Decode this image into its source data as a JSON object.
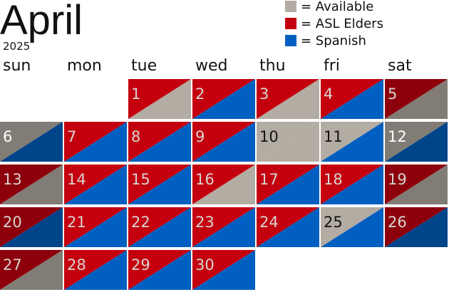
{
  "header": {
    "title": "April",
    "year": "2025"
  },
  "legend": [
    {
      "label": "= Available",
      "color": "#b3aca2"
    },
    {
      "label": "= ASL Elders",
      "color": "#c4000f"
    },
    {
      "label": "= Spanish",
      "color": "#005fc0"
    }
  ],
  "weekdays": [
    "sun",
    "mon",
    "tue",
    "wed",
    "thu",
    "fri",
    "sat"
  ],
  "weeks": [
    [
      null,
      null,
      {
        "label": "1",
        "top": "#c4000f",
        "bottom": "#b3aca2"
      },
      {
        "label": "2",
        "top": "#c4000f",
        "bottom": "#005fc0"
      },
      {
        "label": "3",
        "top": "#c4000f",
        "bottom": "#b3aca2"
      },
      {
        "label": "4",
        "top": "#c4000f",
        "bottom": "#005fc0"
      },
      {
        "label": "5",
        "top": "#c4000f",
        "bottom": "#b3aca2"
      }
    ],
    [
      {
        "label": "6",
        "top": "#b3aca2",
        "bottom": "#005fc0"
      },
      {
        "label": "7",
        "top": "#c4000f",
        "bottom": "#005fc0"
      },
      {
        "label": "8",
        "top": "#c4000f",
        "bottom": "#005fc0"
      },
      {
        "label": "9",
        "top": "#c4000f",
        "bottom": "#005fc0"
      },
      {
        "label": "10",
        "top": "#b3aca2",
        "bottom": "#b3aca2"
      },
      {
        "label": "11",
        "top": "#b3aca2",
        "bottom": "#005fc0"
      },
      {
        "label": "12",
        "top": "#b3aca2",
        "bottom": "#005fc0"
      }
    ],
    [
      {
        "label": "13",
        "top": "#c4000f",
        "bottom": "#b3aca2"
      },
      {
        "label": "14",
        "top": "#c4000f",
        "bottom": "#005fc0"
      },
      {
        "label": "15",
        "top": "#c4000f",
        "bottom": "#005fc0"
      },
      {
        "label": "16",
        "top": "#c4000f",
        "bottom": "#b3aca2"
      },
      {
        "label": "17",
        "top": "#c4000f",
        "bottom": "#005fc0"
      },
      {
        "label": "18",
        "top": "#c4000f",
        "bottom": "#005fc0"
      },
      {
        "label": "19",
        "top": "#c4000f",
        "bottom": "#b3aca2"
      }
    ],
    [
      {
        "label": "20",
        "top": "#c4000f",
        "bottom": "#005fc0"
      },
      {
        "label": "21",
        "top": "#c4000f",
        "bottom": "#005fc0"
      },
      {
        "label": "22",
        "top": "#c4000f",
        "bottom": "#005fc0"
      },
      {
        "label": "23",
        "top": "#c4000f",
        "bottom": "#005fc0"
      },
      {
        "label": "24",
        "top": "#c4000f",
        "bottom": "#005fc0"
      },
      {
        "label": "25",
        "top": "#b3aca2",
        "bottom": "#005fc0"
      },
      {
        "label": "26",
        "top": "#c4000f",
        "bottom": "#005fc0"
      }
    ],
    [
      {
        "label": "27",
        "top": "#c4000f",
        "bottom": "#b3aca2"
      },
      {
        "label": "28",
        "top": "#c4000f",
        "bottom": "#005fc0"
      },
      {
        "label": "29",
        "top": "#c4000f",
        "bottom": "#005fc0"
      },
      {
        "label": "30",
        "top": "#c4000f",
        "bottom": "#005fc0"
      },
      null,
      null,
      null
    ]
  ]
}
